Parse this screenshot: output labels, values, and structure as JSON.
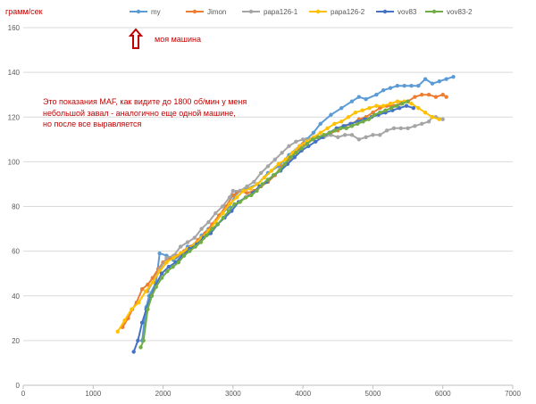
{
  "chart_data": {
    "type": "line",
    "title": "",
    "ylabel": "грамм/сек",
    "xlabel": "",
    "xlim": [
      0,
      7000
    ],
    "ylim": [
      0,
      160
    ],
    "xticks": [
      "0",
      "1000",
      "2000",
      "3000",
      "4000",
      "5000",
      "6000",
      "7000"
    ],
    "yticks": [
      "0",
      "20",
      "40",
      "60",
      "80",
      "100",
      "120",
      "140",
      "160"
    ],
    "grid": "horizontal",
    "legend_position": "top",
    "series": [
      {
        "name": "my",
        "color": "#5b9bd5",
        "points": [
          [
            1700,
            20
          ],
          [
            1760,
            35
          ],
          [
            1800,
            40
          ],
          [
            1900,
            46
          ],
          [
            1950,
            59
          ],
          [
            2050,
            58
          ],
          [
            2150,
            56
          ],
          [
            2250,
            58
          ],
          [
            2350,
            62
          ],
          [
            2450,
            63
          ],
          [
            2550,
            67
          ],
          [
            2650,
            70
          ],
          [
            2750,
            73
          ],
          [
            2850,
            77
          ],
          [
            2950,
            80
          ],
          [
            3050,
            86
          ],
          [
            3200,
            88
          ],
          [
            3350,
            90
          ],
          [
            3500,
            95
          ],
          [
            3650,
            98
          ],
          [
            3800,
            103
          ],
          [
            3950,
            107
          ],
          [
            4050,
            110
          ],
          [
            4150,
            113
          ],
          [
            4250,
            117
          ],
          [
            4400,
            121
          ],
          [
            4550,
            124
          ],
          [
            4700,
            127
          ],
          [
            4800,
            129
          ],
          [
            4900,
            128
          ],
          [
            5050,
            130
          ],
          [
            5150,
            132
          ],
          [
            5250,
            133
          ],
          [
            5350,
            134
          ],
          [
            5450,
            134
          ],
          [
            5550,
            134
          ],
          [
            5650,
            134
          ],
          [
            5750,
            137
          ],
          [
            5850,
            135
          ],
          [
            5950,
            136
          ],
          [
            6050,
            137
          ],
          [
            6150,
            138
          ]
        ]
      },
      {
        "name": "Jimon",
        "color": "#ed7d31",
        "points": [
          [
            1420,
            26
          ],
          [
            1500,
            30
          ],
          [
            1560,
            34
          ],
          [
            1620,
            37
          ],
          [
            1700,
            43
          ],
          [
            1780,
            45
          ],
          [
            1850,
            48
          ],
          [
            1930,
            52
          ],
          [
            2000,
            55
          ],
          [
            2100,
            57
          ],
          [
            2200,
            58
          ],
          [
            2300,
            60
          ],
          [
            2400,
            62
          ],
          [
            2500,
            65
          ],
          [
            2600,
            68
          ],
          [
            2700,
            72
          ],
          [
            2800,
            76
          ],
          [
            2900,
            80
          ],
          [
            3000,
            85
          ],
          [
            3100,
            87
          ],
          [
            3200,
            86
          ],
          [
            3300,
            87
          ],
          [
            3400,
            89
          ],
          [
            3500,
            91
          ],
          [
            3600,
            94
          ],
          [
            3700,
            98
          ],
          [
            3800,
            101
          ],
          [
            3900,
            104
          ],
          [
            4000,
            108
          ],
          [
            4100,
            110
          ],
          [
            4200,
            111
          ],
          [
            4300,
            112
          ],
          [
            4400,
            113
          ],
          [
            4500,
            114
          ],
          [
            4600,
            116
          ],
          [
            4700,
            117
          ],
          [
            4800,
            119
          ],
          [
            4900,
            120
          ],
          [
            5000,
            122
          ],
          [
            5100,
            124
          ],
          [
            5200,
            125
          ],
          [
            5300,
            125
          ],
          [
            5400,
            126
          ],
          [
            5500,
            127
          ],
          [
            5600,
            129
          ],
          [
            5700,
            130
          ],
          [
            5800,
            130
          ],
          [
            5900,
            129
          ],
          [
            6000,
            130
          ],
          [
            6050,
            129
          ]
        ]
      },
      {
        "name": "papa126-1",
        "color": "#a5a5a5",
        "points": [
          [
            1780,
            42
          ],
          [
            1850,
            46
          ],
          [
            1950,
            52
          ],
          [
            2050,
            57
          ],
          [
            2150,
            58
          ],
          [
            2250,
            62
          ],
          [
            2350,
            64
          ],
          [
            2450,
            66
          ],
          [
            2550,
            70
          ],
          [
            2650,
            73
          ],
          [
            2750,
            77
          ],
          [
            2850,
            80
          ],
          [
            2950,
            84
          ],
          [
            3000,
            87
          ],
          [
            3100,
            87
          ],
          [
            3200,
            89
          ],
          [
            3300,
            91
          ],
          [
            3400,
            95
          ],
          [
            3500,
            98
          ],
          [
            3600,
            101
          ],
          [
            3700,
            104
          ],
          [
            3800,
            107
          ],
          [
            3900,
            109
          ],
          [
            4000,
            110
          ],
          [
            4100,
            110
          ],
          [
            4200,
            111
          ],
          [
            4300,
            111
          ],
          [
            4400,
            112
          ],
          [
            4500,
            111
          ],
          [
            4600,
            112
          ],
          [
            4700,
            112
          ],
          [
            4800,
            110
          ],
          [
            4900,
            111
          ],
          [
            5000,
            112
          ],
          [
            5100,
            112
          ],
          [
            5200,
            114
          ],
          [
            5300,
            115
          ],
          [
            5400,
            115
          ],
          [
            5500,
            115
          ],
          [
            5600,
            116
          ],
          [
            5700,
            117
          ],
          [
            5800,
            118
          ],
          [
            5850,
            120
          ],
          [
            5900,
            120
          ],
          [
            6000,
            119
          ]
        ]
      },
      {
        "name": "papa126-2",
        "color": "#ffc000",
        "points": [
          [
            1350,
            24
          ],
          [
            1450,
            29
          ],
          [
            1550,
            34
          ],
          [
            1650,
            37
          ],
          [
            1750,
            42
          ],
          [
            1850,
            46
          ],
          [
            1950,
            51
          ],
          [
            2050,
            55
          ],
          [
            2150,
            57
          ],
          [
            2250,
            59
          ],
          [
            2350,
            61
          ],
          [
            2450,
            63
          ],
          [
            2550,
            66
          ],
          [
            2650,
            69
          ],
          [
            2750,
            73
          ],
          [
            2850,
            77
          ],
          [
            2950,
            81
          ],
          [
            3050,
            84
          ],
          [
            3150,
            87
          ],
          [
            3250,
            88
          ],
          [
            3350,
            90
          ],
          [
            3450,
            93
          ],
          [
            3550,
            96
          ],
          [
            3650,
            99
          ],
          [
            3750,
            101
          ],
          [
            3850,
            104
          ],
          [
            3950,
            107
          ],
          [
            4050,
            109
          ],
          [
            4150,
            111
          ],
          [
            4250,
            113
          ],
          [
            4350,
            115
          ],
          [
            4450,
            117
          ],
          [
            4550,
            118
          ],
          [
            4650,
            120
          ],
          [
            4750,
            122
          ],
          [
            4850,
            123
          ],
          [
            4950,
            124
          ],
          [
            5050,
            125
          ],
          [
            5150,
            125
          ],
          [
            5250,
            126
          ],
          [
            5350,
            127
          ],
          [
            5450,
            127
          ],
          [
            5550,
            126
          ],
          [
            5650,
            124
          ],
          [
            5750,
            122
          ],
          [
            5850,
            120
          ],
          [
            5950,
            119
          ]
        ]
      },
      {
        "name": "vov83",
        "color": "#4472c4",
        "points": [
          [
            1580,
            15
          ],
          [
            1640,
            20
          ],
          [
            1700,
            28
          ],
          [
            1760,
            34
          ],
          [
            1830,
            40
          ],
          [
            1900,
            45
          ],
          [
            1980,
            50
          ],
          [
            2080,
            53
          ],
          [
            2180,
            55
          ],
          [
            2280,
            58
          ],
          [
            2380,
            61
          ],
          [
            2480,
            63
          ],
          [
            2580,
            66
          ],
          [
            2680,
            68
          ],
          [
            2780,
            72
          ],
          [
            2880,
            75
          ],
          [
            2980,
            78
          ],
          [
            3080,
            82
          ],
          [
            3180,
            84
          ],
          [
            3280,
            86
          ],
          [
            3380,
            89
          ],
          [
            3480,
            91
          ],
          [
            3580,
            94
          ],
          [
            3680,
            96
          ],
          [
            3780,
            99
          ],
          [
            3880,
            102
          ],
          [
            3980,
            105
          ],
          [
            4080,
            107
          ],
          [
            4180,
            109
          ],
          [
            4280,
            111
          ],
          [
            4380,
            113
          ],
          [
            4480,
            115
          ],
          [
            4580,
            116
          ],
          [
            4680,
            117
          ],
          [
            4780,
            118
          ],
          [
            4880,
            119
          ],
          [
            4980,
            120
          ],
          [
            5080,
            121
          ],
          [
            5180,
            122
          ],
          [
            5280,
            123
          ],
          [
            5380,
            124
          ],
          [
            5480,
            125
          ],
          [
            5580,
            124
          ]
        ]
      },
      {
        "name": "vov83-2",
        "color": "#70ad47",
        "points": [
          [
            1680,
            17
          ],
          [
            1720,
            20
          ],
          [
            1780,
            34
          ],
          [
            1840,
            40
          ],
          [
            1900,
            44
          ],
          [
            1980,
            48
          ],
          [
            2060,
            51
          ],
          [
            2140,
            53
          ],
          [
            2220,
            55
          ],
          [
            2300,
            58
          ],
          [
            2380,
            60
          ],
          [
            2460,
            62
          ],
          [
            2540,
            64
          ],
          [
            2620,
            67
          ],
          [
            2700,
            70
          ],
          [
            2780,
            72
          ],
          [
            2860,
            75
          ],
          [
            2940,
            78
          ],
          [
            3020,
            81
          ],
          [
            3100,
            82
          ],
          [
            3180,
            84
          ],
          [
            3260,
            85
          ],
          [
            3340,
            87
          ],
          [
            3420,
            90
          ],
          [
            3500,
            92
          ],
          [
            3580,
            94
          ],
          [
            3660,
            96
          ],
          [
            3740,
            99
          ],
          [
            3820,
            102
          ],
          [
            3900,
            104
          ],
          [
            3980,
            106
          ],
          [
            4060,
            108
          ],
          [
            4140,
            110
          ],
          [
            4220,
            111
          ],
          [
            4300,
            112
          ],
          [
            4380,
            113
          ],
          [
            4460,
            114
          ],
          [
            4540,
            115
          ],
          [
            4620,
            115
          ],
          [
            4700,
            116
          ],
          [
            4780,
            117
          ],
          [
            4860,
            118
          ],
          [
            4940,
            119
          ],
          [
            5020,
            121
          ],
          [
            5100,
            122
          ],
          [
            5180,
            123
          ],
          [
            5260,
            124
          ],
          [
            5340,
            125
          ],
          [
            5420,
            126
          ],
          [
            5500,
            127
          ]
        ]
      }
    ]
  },
  "annotations": {
    "callout": "моя машина",
    "note_lines": [
      "Это показания МАF, как видите до 1800 об/мин у меня",
      "небольшой завал - аналогично еще одной машине,",
      "но после все выравляется"
    ]
  }
}
